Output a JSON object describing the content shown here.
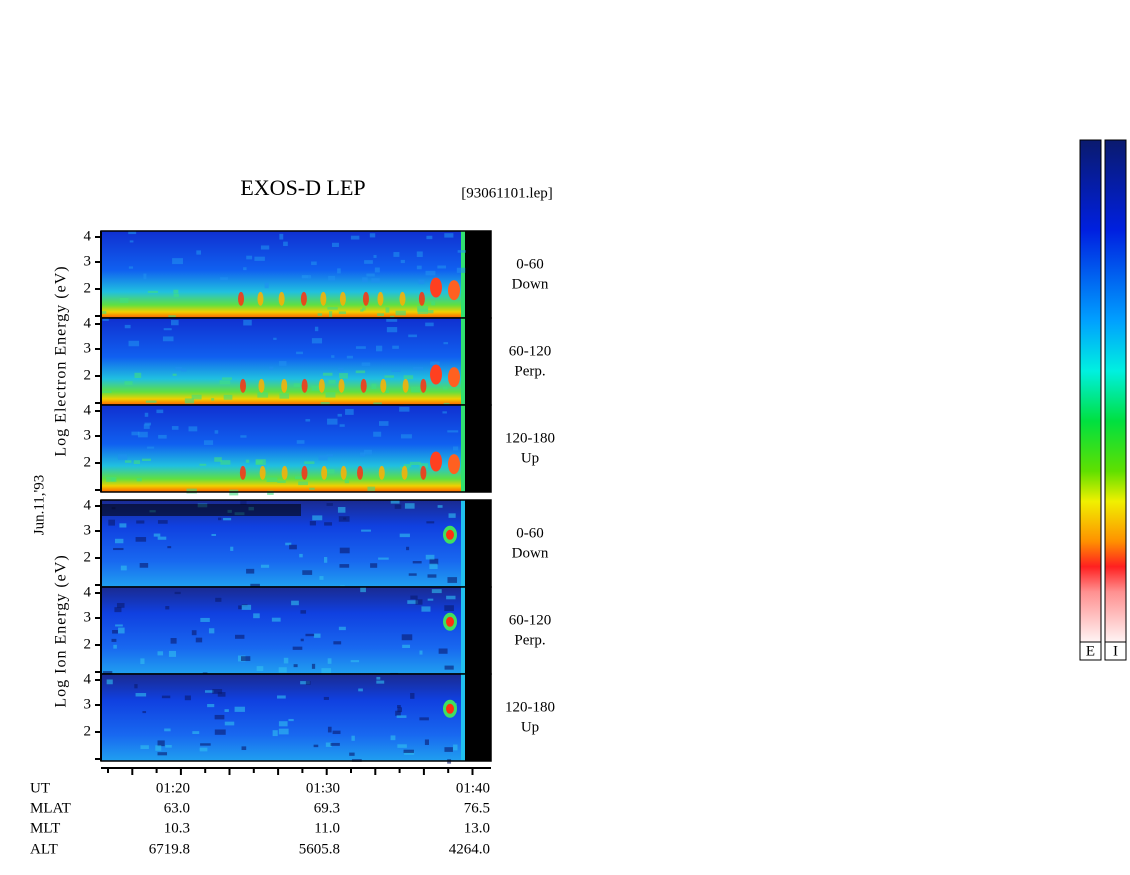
{
  "title": "EXOS-D LEP",
  "file": "[93061101.lep]",
  "date": "Jun.11,'93",
  "electron": {
    "axis_label": "Log Electron Energy (eV)",
    "yticks": [
      "4",
      "3",
      "2"
    ],
    "panels": [
      {
        "angle": "0-60",
        "direction": "Down"
      },
      {
        "angle": "60-120",
        "direction": "Perp."
      },
      {
        "angle": "120-180",
        "direction": "Up"
      }
    ]
  },
  "ion": {
    "axis_label": "Log Ion Energy (eV)",
    "yticks": [
      "4",
      "3",
      "2"
    ],
    "panels": [
      {
        "angle": "0-60",
        "direction": "Down"
      },
      {
        "angle": "60-120",
        "direction": "Perp."
      },
      {
        "angle": "120-180",
        "direction": "Up"
      }
    ]
  },
  "time_axis": {
    "rows": [
      [
        "UT",
        "01:20",
        "01:30",
        "01:40"
      ],
      [
        "MLAT",
        "63.0",
        "69.3",
        "76.5"
      ],
      [
        "MLT",
        "10.3",
        "11.0",
        "13.0"
      ],
      [
        "ALT",
        "6719.8",
        "5605.8",
        "4264.0"
      ]
    ]
  },
  "colorbar_labels": [
    "E",
    "I"
  ]
}
